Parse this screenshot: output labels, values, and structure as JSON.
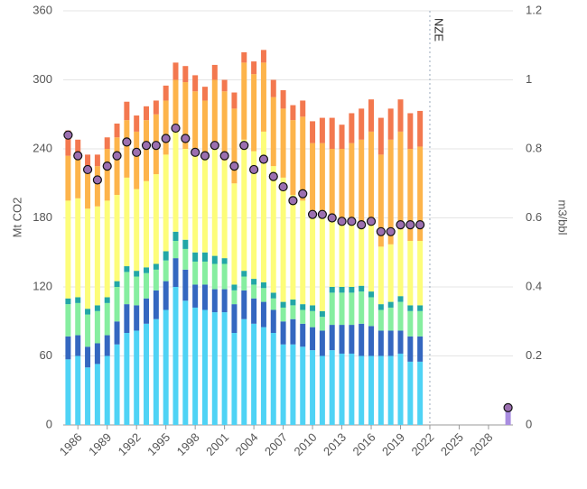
{
  "chart_data": {
    "type": "bar",
    "stacked": true,
    "y_label": "Mt CO2",
    "y2_label": "m3/bbl",
    "x": [
      1985,
      1986,
      1987,
      1988,
      1989,
      1990,
      1991,
      1992,
      1993,
      1994,
      1995,
      1996,
      1997,
      1998,
      1999,
      2000,
      2001,
      2002,
      2003,
      2004,
      2005,
      2006,
      2007,
      2008,
      2009,
      2010,
      2011,
      2012,
      2013,
      2014,
      2015,
      2016,
      2017,
      2018,
      2019,
      2020,
      2021,
      2030
    ],
    "xlim": [
      1984.5,
      2030.5
    ],
    "xticks": [
      1986,
      1989,
      1992,
      1995,
      1998,
      2001,
      2004,
      2007,
      2010,
      2013,
      2016,
      2019,
      2022,
      2025,
      2028
    ],
    "ylim": [
      0,
      360
    ],
    "yticks": [
      0,
      60,
      120,
      180,
      240,
      300,
      360
    ],
    "y2lim": [
      0,
      1.2
    ],
    "y2ticks": [
      0,
      0.2,
      0.4,
      0.6,
      0.8,
      1,
      1.2
    ],
    "grid": true,
    "annotations": [
      {
        "x": 2022,
        "text": "NZE"
      }
    ],
    "series": [
      {
        "color": "#4fd3f5",
        "values": [
          57,
          60,
          50,
          53,
          60,
          70,
          80,
          82,
          88,
          92,
          100,
          120,
          108,
          102,
          100,
          98,
          98,
          80,
          92,
          88,
          85,
          80,
          70,
          70,
          68,
          65,
          60,
          65,
          62,
          62,
          60,
          60,
          60,
          60,
          62,
          55,
          55,
          null
        ]
      },
      {
        "color": "#3467c0",
        "values": [
          20,
          18,
          18,
          18,
          18,
          20,
          25,
          22,
          22,
          25,
          25,
          25,
          27,
          20,
          22,
          20,
          20,
          25,
          25,
          22,
          22,
          20,
          20,
          22,
          20,
          20,
          22,
          22,
          25,
          25,
          28,
          26,
          22,
          22,
          20,
          22,
          22,
          null
        ]
      },
      {
        "color": "#86eea0",
        "values": [
          28,
          28,
          28,
          28,
          28,
          30,
          28,
          25,
          22,
          18,
          18,
          15,
          18,
          20,
          20,
          22,
          22,
          12,
          12,
          12,
          12,
          10,
          12,
          12,
          12,
          14,
          12,
          28,
          28,
          28,
          28,
          25,
          18,
          20,
          25,
          22,
          22,
          null
        ]
      },
      {
        "color": "#22a6a6",
        "values": [
          5,
          5,
          5,
          5,
          5,
          5,
          5,
          5,
          5,
          5,
          8,
          8,
          8,
          8,
          8,
          7,
          5,
          5,
          5,
          5,
          5,
          5,
          5,
          5,
          5,
          5,
          5,
          5,
          5,
          5,
          5,
          5,
          5,
          5,
          5,
          5,
          5,
          null
        ]
      },
      {
        "color": "#fdfd7a",
        "values": [
          85,
          86,
          87,
          86,
          84,
          75,
          77,
          71,
          75,
          78,
          84,
          90,
          79,
          88,
          82,
          98,
          85,
          88,
          114,
          111,
          131,
          110,
          108,
          91,
          90,
          76,
          81,
          58,
          58,
          58,
          55,
          64,
          50,
          50,
          58,
          56,
          56,
          null
        ]
      },
      {
        "color": "#fdb44b",
        "values": [
          39,
          39,
          37,
          35,
          45,
          50,
          50,
          50,
          53,
          52,
          47,
          42,
          58,
          52,
          50,
          55,
          60,
          65,
          67,
          67,
          60,
          60,
          60,
          65,
          73,
          65,
          65,
          62,
          62,
          67,
          72,
          75,
          80,
          91,
          85,
          80,
          82,
          null
        ]
      },
      {
        "color": "#f3784f",
        "values": [
          22,
          12,
          10,
          10,
          10,
          12,
          16,
          14,
          12,
          12,
          13,
          15,
          14,
          14,
          12,
          13,
          10,
          14,
          9,
          11,
          11,
          15,
          16,
          13,
          14,
          19,
          22,
          27,
          21,
          26,
          27,
          28,
          32,
          27,
          28,
          31,
          31,
          null
        ]
      },
      {
        "color": "#a98de0",
        "values": [
          null,
          null,
          null,
          null,
          null,
          null,
          null,
          null,
          null,
          null,
          null,
          null,
          null,
          null,
          null,
          null,
          null,
          null,
          null,
          null,
          null,
          null,
          null,
          null,
          null,
          null,
          null,
          null,
          null,
          null,
          null,
          null,
          null,
          null,
          null,
          null,
          null,
          14
        ]
      },
      {
        "color": "#9b6fb0",
        "axis": "y2",
        "values": [
          0.84,
          0.78,
          0.74,
          0.71,
          0.75,
          0.78,
          0.82,
          0.79,
          0.81,
          0.81,
          0.83,
          0.86,
          0.83,
          0.79,
          0.78,
          0.81,
          0.78,
          0.75,
          0.81,
          0.74,
          0.77,
          0.72,
          0.69,
          0.65,
          0.67,
          0.61,
          0.61,
          0.6,
          0.59,
          0.59,
          0.58,
          0.59,
          0.56,
          0.56,
          0.58,
          0.58,
          0.58,
          0.05
        ]
      }
    ]
  }
}
